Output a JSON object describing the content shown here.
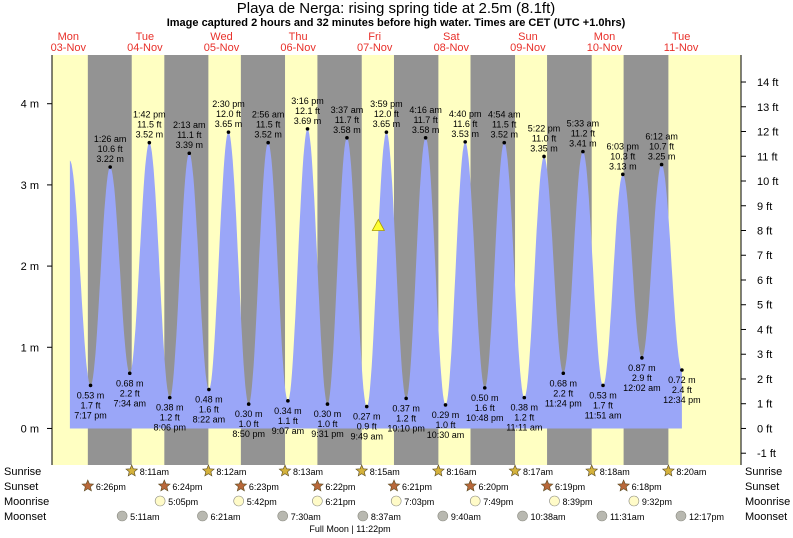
{
  "chart_data": {
    "type": "area",
    "title": "Playa de Nerga: rising  spring tide at 2.5m (8.1ft)",
    "subtitle": "Image captured 2 hours and 32 minutes before high water. Times are CET (UTC +1.0hrs)",
    "days": [
      {
        "dow": "Mon",
        "date": "03-Nov"
      },
      {
        "dow": "Tue",
        "date": "04-Nov"
      },
      {
        "dow": "Wed",
        "date": "05-Nov"
      },
      {
        "dow": "Thu",
        "date": "06-Nov"
      },
      {
        "dow": "Fri",
        "date": "07-Nov"
      },
      {
        "dow": "Sat",
        "date": "08-Nov"
      },
      {
        "dow": "Sun",
        "date": "09-Nov"
      },
      {
        "dow": "Mon",
        "date": "10-Nov"
      },
      {
        "dow": "Tue",
        "date": "11-Nov"
      }
    ],
    "start_value": 3.3,
    "end_value": 0.72,
    "y_left_ticks": [
      "0 m",
      "1 m",
      "2 m",
      "3 m",
      "4 m"
    ],
    "y_right_ticks": [
      "-1 ft",
      "0 ft",
      "1 ft",
      "2 ft",
      "3 ft",
      "4 ft",
      "5 ft",
      "6 ft",
      "7 ft",
      "8 ft",
      "9 ft",
      "10 ft",
      "11 ft",
      "12 ft",
      "13 ft",
      "14 ft"
    ],
    "ylim_m": [
      -0.45,
      4.6
    ],
    "extremes": [
      {
        "type": "low",
        "time": "7:17 pm",
        "m": 0.53,
        "ft": "1.7 ft",
        "m_label": "0.53 m"
      },
      {
        "type": "high",
        "time": "1:26 am",
        "m": 3.22,
        "ft": "10.6 ft",
        "m_label": "3.22 m"
      },
      {
        "type": "low",
        "time": "7:34 am",
        "m": 0.68,
        "ft": "2.2 ft",
        "m_label": "0.68 m"
      },
      {
        "type": "high",
        "time": "1:42 pm",
        "m": 3.52,
        "ft": "11.5 ft",
        "m_label": "3.52 m"
      },
      {
        "type": "low",
        "time": "8:06 pm",
        "m": 0.38,
        "ft": "1.2 ft",
        "m_label": "0.38 m"
      },
      {
        "type": "high",
        "time": "2:13 am",
        "m": 3.39,
        "ft": "11.1 ft",
        "m_label": "3.39 m"
      },
      {
        "type": "low",
        "time": "8:22 am",
        "m": 0.48,
        "ft": "1.6 ft",
        "m_label": "0.48 m"
      },
      {
        "type": "high",
        "time": "2:30 pm",
        "m": 3.65,
        "ft": "12.0 ft",
        "m_label": "3.65 m"
      },
      {
        "type": "low",
        "time": "8:50 pm",
        "m": 0.3,
        "ft": "1.0 ft",
        "m_label": "0.30 m"
      },
      {
        "type": "high",
        "time": "2:56 am",
        "m": 3.52,
        "ft": "11.5 ft",
        "m_label": "3.52 m"
      },
      {
        "type": "low",
        "time": "9:07 am",
        "m": 0.34,
        "ft": "1.1 ft",
        "m_label": "0.34 m"
      },
      {
        "type": "high",
        "time": "3:16 pm",
        "m": 3.69,
        "ft": "12.1 ft",
        "m_label": "3.69 m"
      },
      {
        "type": "low",
        "time": "9:31 pm",
        "m": 0.3,
        "ft": "1.0 ft",
        "m_label": "0.30 m"
      },
      {
        "type": "high",
        "time": "3:37 am",
        "m": 3.58,
        "ft": "11.7 ft",
        "m_label": "3.58 m"
      },
      {
        "type": "low",
        "time": "9:49 am",
        "m": 0.27,
        "ft": "0.9 ft",
        "m_label": "0.27 m"
      },
      {
        "type": "high",
        "time": "3:59 pm",
        "m": 3.65,
        "ft": "12.0 ft",
        "m_label": "3.65 m"
      },
      {
        "type": "low",
        "time": "10:10 pm",
        "m": 0.37,
        "ft": "1.2 ft",
        "m_label": "0.37 m"
      },
      {
        "type": "high",
        "time": "4:16 am",
        "m": 3.58,
        "ft": "11.7 ft",
        "m_label": "3.58 m"
      },
      {
        "type": "low",
        "time": "10:30 am",
        "m": 0.29,
        "ft": "1.0 ft",
        "m_label": "0.29 m"
      },
      {
        "type": "high",
        "time": "4:40 pm",
        "m": 3.53,
        "ft": "11.6 ft",
        "m_label": "3.53 m"
      },
      {
        "type": "low",
        "time": "10:48 pm",
        "m": 0.5,
        "ft": "1.6 ft",
        "m_label": "0.50 m"
      },
      {
        "type": "high",
        "time": "4:54 am",
        "m": 3.52,
        "ft": "11.5 ft",
        "m_label": "3.52 m"
      },
      {
        "type": "low",
        "time": "11:11 am",
        "m": 0.38,
        "ft": "1.2 ft",
        "m_label": "0.38 m"
      },
      {
        "type": "high",
        "time": "5:22 pm",
        "m": 3.35,
        "ft": "11.0 ft",
        "m_label": "3.35 m"
      },
      {
        "type": "low",
        "time": "11:24 pm",
        "m": 0.68,
        "ft": "2.2 ft",
        "m_label": "0.68 m"
      },
      {
        "type": "high",
        "time": "5:33 am",
        "m": 3.41,
        "ft": "11.2 ft",
        "m_label": "3.41 m"
      },
      {
        "type": "low",
        "time": "11:51 am",
        "m": 0.53,
        "ft": "1.7 ft",
        "m_label": "0.53 m"
      },
      {
        "type": "high",
        "time": "6:03 pm",
        "m": 3.13,
        "ft": "10.3 ft",
        "m_label": "3.13 m"
      },
      {
        "type": "low",
        "time": "12:02 am",
        "m": 0.87,
        "ft": "2.9 ft",
        "m_label": "0.87 m"
      },
      {
        "type": "high",
        "time": "6:12 am",
        "m": 3.25,
        "ft": "10.7 ft",
        "m_label": "3.25 m"
      },
      {
        "type": "low",
        "time": "12:34 pm",
        "m": 0.72,
        "ft": "2.4 ft",
        "m_label": "0.72 m"
      }
    ],
    "current": {
      "time": "Fri 07-Nov 1:27 pm",
      "m": 2.5
    },
    "rows": {
      "labels": [
        "Sunrise",
        "Sunset",
        "Moonrise",
        "Moonset"
      ],
      "sunrise": [
        "8:11am",
        "8:12am",
        "8:13am",
        "8:15am",
        "8:16am",
        "8:17am",
        "8:18am",
        "8:20am"
      ],
      "sunset": [
        "6:26pm",
        "6:24pm",
        "6:23pm",
        "6:22pm",
        "6:21pm",
        "6:20pm",
        "6:19pm",
        "6:18pm"
      ],
      "moonrise": [
        "5:05pm",
        "5:42pm",
        "6:21pm",
        "7:03pm",
        "7:49pm",
        "8:39pm",
        "9:32pm"
      ],
      "moonset": [
        "5:11am",
        "6:21am",
        "7:30am",
        "8:37am",
        "9:40am",
        "10:38am",
        "11:31am",
        "12:17pm"
      ]
    },
    "moon_phase": "Full Moon | 11:22pm",
    "colors": {
      "tide_fill": "#9aa6f8",
      "day_band": "#ffffc2",
      "night_band": "#939393",
      "day_label": "#e8302a",
      "sun_star": "#d4b23c",
      "sunset_star": "#b8683a",
      "moonrise": "#fffbc8",
      "moonset": "#b8b8b0",
      "current_marker": "#ffff33"
    }
  }
}
